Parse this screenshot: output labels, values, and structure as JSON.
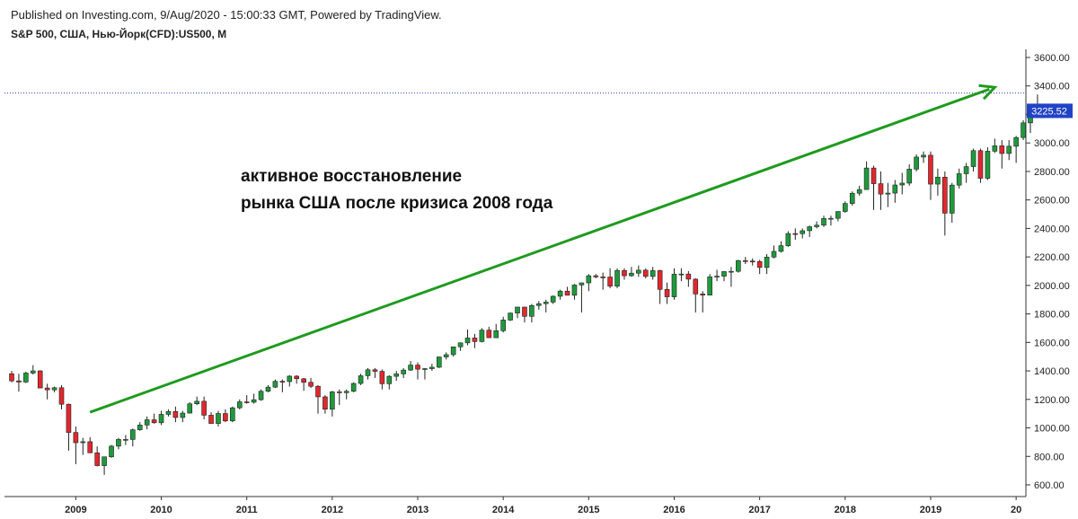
{
  "header": {
    "published": "Published on Investing.com, 9/Aug/2020 - 15:00:33 GMT, Powered by TradingView.",
    "symbol": "S&P 500, США, Нью-Йорк(CFD):US500, M"
  },
  "annotation": {
    "line1": "активное восстановление",
    "line2": "рынка США после кризиса 2008 года"
  },
  "colors": {
    "up": "#1e9a3c",
    "down": "#e0282e",
    "arrow": "#1f9a1f",
    "hline": "#2b3fbf",
    "price_badge": "#2243c5",
    "axis": "#333333"
  },
  "chart_data": {
    "type": "candlestick",
    "interval": "monthly",
    "ylim": [
      570,
      3690
    ],
    "yticks": [
      600,
      800,
      1000,
      1200,
      1400,
      1600,
      1800,
      2000,
      2200,
      2400,
      2600,
      2800,
      3000,
      3200,
      3400,
      3600
    ],
    "ytick_labels": [
      "600.00",
      "800.00",
      "1000.00",
      "1200.00",
      "1400.00",
      "1600.00",
      "1800.00",
      "2000.00",
      "2200.00",
      "2400.00",
      "2600.00",
      "2800.00",
      "3000.00",
      "3200.00",
      "3400.00",
      "3600.00"
    ],
    "xticks": [
      "2009",
      "2010",
      "2011",
      "2012",
      "2013",
      "2014",
      "2015",
      "2016",
      "2017",
      "2018",
      "2019",
      "20"
    ],
    "last_price": 3225.52,
    "last_price_label": "3225.52",
    "horizontal_line": 3350,
    "arrow": {
      "from": {
        "date": "2009-03",
        "value": 1110
      },
      "to": {
        "date": "2019-10",
        "value": 3390
      }
    },
    "candles": [
      [
        1380,
        1400,
        1320,
        1330
      ],
      [
        1330,
        1380,
        1255,
        1322
      ],
      [
        1322,
        1395,
        1315,
        1385
      ],
      [
        1385,
        1440,
        1375,
        1400
      ],
      [
        1400,
        1405,
        1310,
        1280
      ],
      [
        1280,
        1310,
        1200,
        1267
      ],
      [
        1267,
        1290,
        1250,
        1282
      ],
      [
        1282,
        1300,
        1130,
        1166
      ],
      [
        1166,
        1170,
        840,
        968
      ],
      [
        968,
        1010,
        745,
        896
      ],
      [
        896,
        930,
        810,
        903
      ],
      [
        903,
        935,
        850,
        825
      ],
      [
        825,
        870,
        730,
        735
      ],
      [
        735,
        780,
        670,
        797
      ],
      [
        797,
        880,
        790,
        872
      ],
      [
        872,
        930,
        850,
        919
      ],
      [
        919,
        950,
        880,
        919
      ],
      [
        919,
        995,
        870,
        987
      ],
      [
        987,
        1040,
        980,
        1020
      ],
      [
        1020,
        1080,
        990,
        1057
      ],
      [
        1057,
        1100,
        1030,
        1036
      ],
      [
        1036,
        1120,
        1020,
        1095
      ],
      [
        1095,
        1130,
        1080,
        1115
      ],
      [
        1115,
        1150,
        1040,
        1073
      ],
      [
        1073,
        1120,
        1040,
        1104
      ],
      [
        1104,
        1180,
        1100,
        1169
      ],
      [
        1169,
        1220,
        1160,
        1187
      ],
      [
        1187,
        1220,
        1060,
        1089
      ],
      [
        1089,
        1110,
        1030,
        1031
      ],
      [
        1031,
        1120,
        1010,
        1101
      ],
      [
        1101,
        1130,
        1040,
        1049
      ],
      [
        1049,
        1150,
        1040,
        1141
      ],
      [
        1141,
        1200,
        1130,
        1183
      ],
      [
        1183,
        1230,
        1170,
        1180
      ],
      [
        1180,
        1240,
        1170,
        1198
      ],
      [
        1198,
        1270,
        1190,
        1257
      ],
      [
        1257,
        1300,
        1250,
        1286
      ],
      [
        1286,
        1340,
        1280,
        1327
      ],
      [
        1327,
        1340,
        1250,
        1325
      ],
      [
        1325,
        1370,
        1290,
        1363
      ],
      [
        1363,
        1370,
        1310,
        1345
      ],
      [
        1345,
        1350,
        1260,
        1320
      ],
      [
        1320,
        1350,
        1280,
        1292
      ],
      [
        1292,
        1300,
        1100,
        1218
      ],
      [
        1218,
        1230,
        1100,
        1131
      ],
      [
        1131,
        1260,
        1080,
        1253
      ],
      [
        1253,
        1270,
        1160,
        1247
      ],
      [
        1247,
        1270,
        1200,
        1257
      ],
      [
        1257,
        1320,
        1250,
        1312
      ],
      [
        1312,
        1380,
        1300,
        1366
      ],
      [
        1366,
        1420,
        1340,
        1408
      ],
      [
        1408,
        1420,
        1350,
        1397
      ],
      [
        1397,
        1410,
        1270,
        1310
      ],
      [
        1310,
        1370,
        1270,
        1362
      ],
      [
        1362,
        1400,
        1330,
        1379
      ],
      [
        1379,
        1420,
        1350,
        1406
      ],
      [
        1406,
        1470,
        1400,
        1441
      ],
      [
        1441,
        1460,
        1340,
        1412
      ],
      [
        1412,
        1420,
        1340,
        1416
      ],
      [
        1416,
        1450,
        1400,
        1426
      ],
      [
        1426,
        1500,
        1420,
        1498
      ],
      [
        1498,
        1530,
        1480,
        1514
      ],
      [
        1514,
        1570,
        1500,
        1569
      ],
      [
        1569,
        1600,
        1540,
        1597
      ],
      [
        1597,
        1690,
        1580,
        1631
      ],
      [
        1631,
        1660,
        1560,
        1606
      ],
      [
        1606,
        1700,
        1600,
        1686
      ],
      [
        1686,
        1710,
        1630,
        1633
      ],
      [
        1633,
        1730,
        1630,
        1682
      ],
      [
        1682,
        1780,
        1670,
        1757
      ],
      [
        1757,
        1810,
        1750,
        1806
      ],
      [
        1806,
        1850,
        1770,
        1848
      ],
      [
        1848,
        1850,
        1740,
        1783
      ],
      [
        1783,
        1870,
        1740,
        1859
      ],
      [
        1859,
        1890,
        1830,
        1872
      ],
      [
        1872,
        1900,
        1810,
        1883
      ],
      [
        1883,
        1930,
        1870,
        1924
      ],
      [
        1924,
        1970,
        1900,
        1960
      ],
      [
        1960,
        1990,
        1950,
        1931
      ],
      [
        1931,
        2010,
        1900,
        2003
      ],
      [
        2003,
        2020,
        1810,
        2018
      ],
      [
        2018,
        2080,
        1960,
        2068
      ],
      [
        2068,
        2080,
        2050,
        2060
      ],
      [
        2060,
        2090,
        1970,
        2059
      ],
      [
        2059,
        2120,
        1980,
        1995
      ],
      [
        1995,
        2120,
        1980,
        2105
      ],
      [
        2105,
        2120,
        2040,
        2068
      ],
      [
        2068,
        2130,
        2060,
        2086
      ],
      [
        2086,
        2140,
        2060,
        2107
      ],
      [
        2107,
        2120,
        2050,
        2063
      ],
      [
        2063,
        2130,
        2040,
        2104
      ],
      [
        2104,
        2110,
        1870,
        1972
      ],
      [
        1972,
        2020,
        1870,
        1920
      ],
      [
        1920,
        2120,
        1900,
        2079
      ],
      [
        2079,
        2120,
        2030,
        2080
      ],
      [
        2080,
        2100,
        1990,
        2044
      ],
      [
        2044,
        2050,
        1810,
        1940
      ],
      [
        1940,
        1960,
        1810,
        1932
      ],
      [
        1932,
        2080,
        1930,
        2060
      ],
      [
        2060,
        2110,
        2030,
        2065
      ],
      [
        2065,
        2100,
        2030,
        2097
      ],
      [
        2097,
        2130,
        1990,
        2099
      ],
      [
        2099,
        2180,
        2090,
        2174
      ],
      [
        2174,
        2200,
        2150,
        2171
      ],
      [
        2171,
        2190,
        2140,
        2168
      ],
      [
        2168,
        2180,
        2080,
        2126
      ],
      [
        2126,
        2220,
        2080,
        2199
      ],
      [
        2199,
        2280,
        2190,
        2239
      ],
      [
        2239,
        2310,
        2230,
        2279
      ],
      [
        2279,
        2380,
        2270,
        2364
      ],
      [
        2364,
        2400,
        2320,
        2363
      ],
      [
        2363,
        2400,
        2330,
        2384
      ],
      [
        2384,
        2420,
        2340,
        2412
      ],
      [
        2412,
        2450,
        2400,
        2423
      ],
      [
        2423,
        2490,
        2410,
        2470
      ],
      [
        2470,
        2490,
        2420,
        2471
      ],
      [
        2471,
        2520,
        2450,
        2519
      ],
      [
        2519,
        2590,
        2510,
        2575
      ],
      [
        2575,
        2660,
        2560,
        2647
      ],
      [
        2647,
        2700,
        2630,
        2673
      ],
      [
        2673,
        2870,
        2670,
        2824
      ],
      [
        2824,
        2840,
        2530,
        2714
      ],
      [
        2714,
        2800,
        2530,
        2641
      ],
      [
        2641,
        2720,
        2550,
        2648
      ],
      [
        2648,
        2740,
        2580,
        2705
      ],
      [
        2705,
        2790,
        2640,
        2718
      ],
      [
        2718,
        2850,
        2700,
        2816
      ],
      [
        2816,
        2920,
        2800,
        2901
      ],
      [
        2901,
        2940,
        2860,
        2914
      ],
      [
        2914,
        2940,
        2600,
        2711
      ],
      [
        2711,
        2820,
        2630,
        2760
      ],
      [
        2760,
        2800,
        2350,
        2507
      ],
      [
        2507,
        2720,
        2440,
        2704
      ],
      [
        2704,
        2820,
        2680,
        2784
      ],
      [
        2784,
        2860,
        2720,
        2834
      ],
      [
        2834,
        2960,
        2800,
        2946
      ],
      [
        2946,
        2960,
        2720,
        2752
      ],
      [
        2752,
        2970,
        2740,
        2942
      ],
      [
        2942,
        3030,
        2930,
        2980
      ],
      [
        2980,
        3020,
        2820,
        2926
      ],
      [
        2926,
        3020,
        2880,
        2977
      ],
      [
        2977,
        3050,
        2860,
        3038
      ],
      [
        3038,
        3160,
        3020,
        3141
      ],
      [
        3141,
        3250,
        3070,
        3231
      ],
      [
        3231,
        3340,
        3180,
        3226
      ]
    ]
  }
}
